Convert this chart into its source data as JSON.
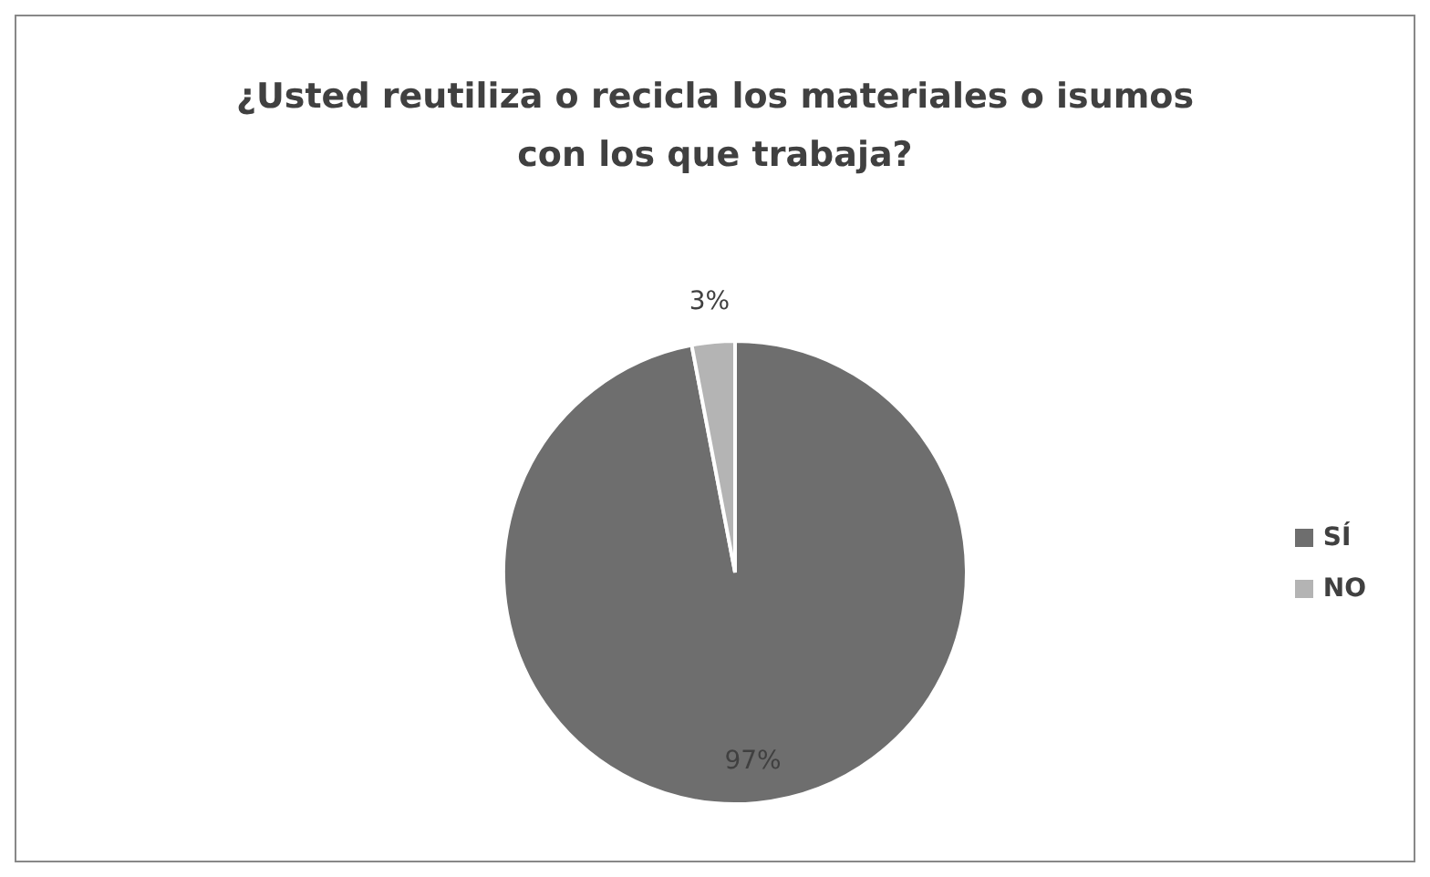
{
  "chart_data": {
    "type": "pie",
    "title": "¿Usted reutiliza o recicla los materiales o isumos con los que trabaja?",
    "categories": [
      "SÍ",
      "NO"
    ],
    "values": [
      97,
      3
    ],
    "value_labels": [
      "97%",
      "3%"
    ],
    "colors": [
      "#6e6e6e",
      "#b4b4b4"
    ],
    "legend": "right"
  }
}
